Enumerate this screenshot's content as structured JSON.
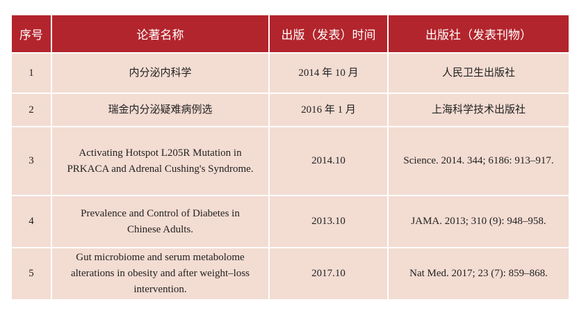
{
  "table": {
    "header": [
      "序号",
      "论著名称",
      "出版（发表）时间",
      "出版社（发表刊物）"
    ],
    "rows": [
      [
        "1",
        "内分泌内科学",
        "2014 年 10 月",
        "人民卫生出版社"
      ],
      [
        "2",
        "瑞金内分泌疑难病例选",
        "2016 年 1 月",
        "上海科学技术出版社"
      ],
      [
        "3",
        "Activating Hotspot L205R Mutation in\nPRKACA and Adrenal Cushing's Syndrome.",
        "2014.10",
        "Science. 2014. 344; 6186: 913–917."
      ],
      [
        "4",
        "Prevalence and Control of Diabetes in\nChinese Adults.",
        "2013.10",
        "JAMA. 2013; 310 (9): 948–958."
      ],
      [
        "5",
        "Gut microbiome and serum metabolome\nalterations in obesity and after weight–loss\nintervention.",
        "2017.10",
        "Nat Med. 2017; 23 (7): 859–868."
      ]
    ]
  }
}
